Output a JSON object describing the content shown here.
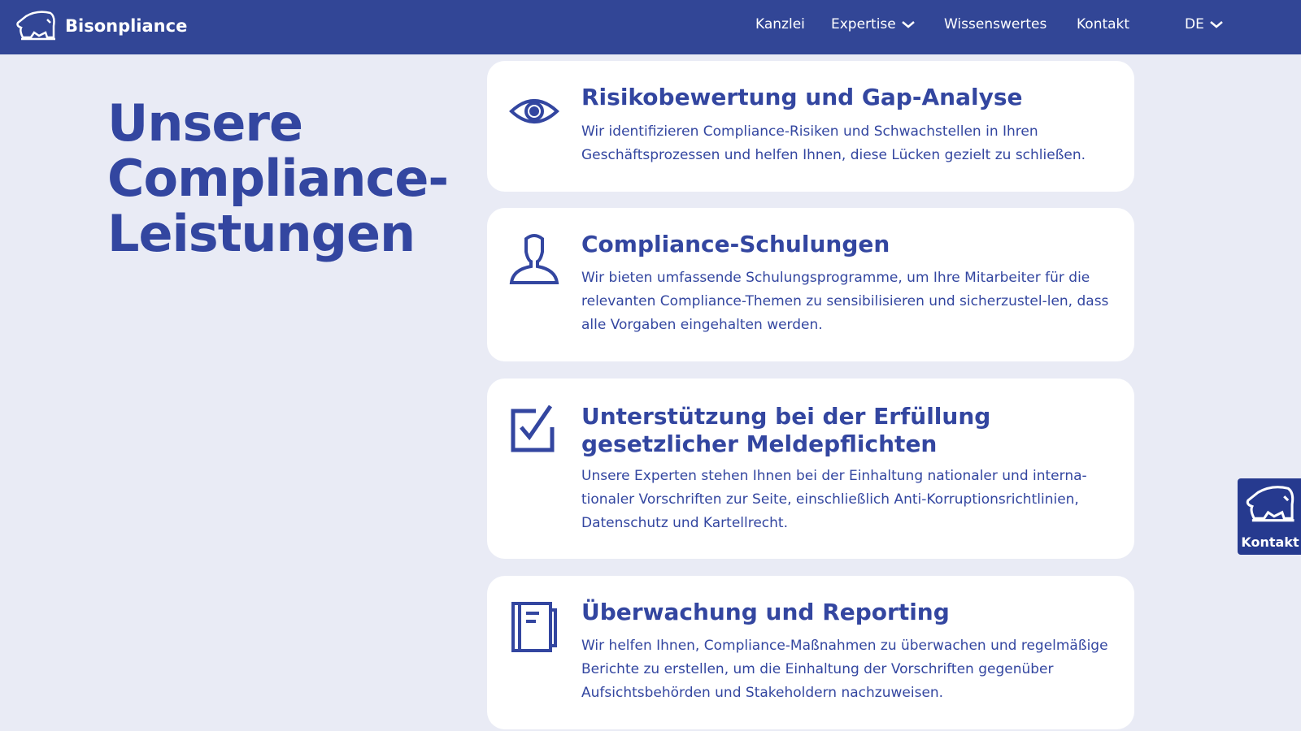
{
  "header": {
    "brand": "Bisonpliance",
    "nav": [
      {
        "label": "Kanzlei"
      },
      {
        "label": "Expertise"
      },
      {
        "label": "Wissenswertes"
      },
      {
        "label": "Kontakt"
      }
    ],
    "language": "DE"
  },
  "hero": {
    "title": "Unsere Compliance-Leistungen"
  },
  "services": [
    {
      "icon": "eye-icon",
      "title": "Risikobewertung und Gap-Analyse",
      "text": "Wir identifizieren Compliance-Risiken und Schwachstellen in Ihren Geschäftsprozessen und helfen Ihnen, diese Lücken gezielt zu schließen."
    },
    {
      "icon": "person-icon",
      "title": "Compliance-Schulungen",
      "text": "Wir bieten umfassende Schulungsprogramme, um Ihre Mitarbeiter für die relevanten Compliance-Themen zu sensibilisieren und sicherzustel-len, dass alle Vorgaben eingehalten werden."
    },
    {
      "icon": "checkbox-icon",
      "title": "Unterstützung bei der Erfüllung gesetzlicher Meldepflichten",
      "text": "Unsere Experten stehen Ihnen bei der Einhaltung nationaler und interna-tionaler Vorschriften zur Seite, einschließlich Anti-Korruptionsrichtlinien, Datenschutz und Kartellrecht."
    },
    {
      "icon": "notebook-icon",
      "title": "Überwachung und Reporting",
      "text": "Wir helfen Ihnen, Compliance-Maßnahmen zu überwachen und regelmäßige Berichte zu erstellen, um die Einhaltung der Vorschriften gegenüber Aufsichtsbehörden und Stakeholdern nachzuweisen."
    }
  ],
  "contact_fab": {
    "label": "Kontakt"
  },
  "colors": {
    "nav": "#324696",
    "background": "#e9ebf5",
    "text": "#3346a0"
  }
}
